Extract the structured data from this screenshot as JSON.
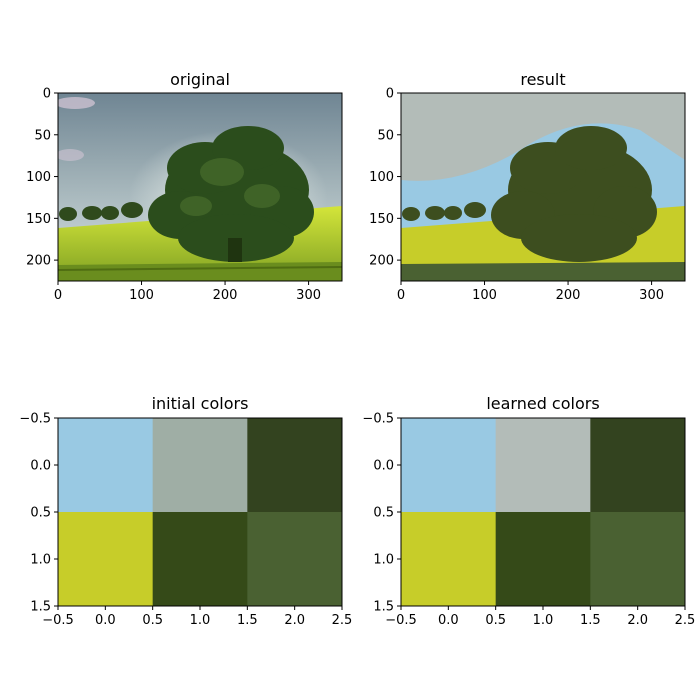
{
  "chart_data": [
    {
      "type": "image",
      "title": "original",
      "xticks": [
        "0",
        "100",
        "200",
        "300"
      ],
      "yticks": [
        "0",
        "50",
        "100",
        "150",
        "200"
      ],
      "xlim": [
        0,
        340
      ],
      "ylim": [
        225,
        0
      ],
      "colors": {
        "sky": "#7f95a3",
        "sky_light": "#c8d6d8",
        "grass": "#bcd532",
        "grass_dark": "#5a7a1a",
        "tree": "#33531f",
        "tree_dark": "#1f3a12"
      }
    },
    {
      "type": "image",
      "title": "result",
      "xticks": [
        "0",
        "100",
        "200",
        "300"
      ],
      "yticks": [
        "0",
        "50",
        "100",
        "150",
        "200"
      ],
      "xlim": [
        0,
        340
      ],
      "ylim": [
        225,
        0
      ],
      "colors": {
        "sky_gray": "#b3bcb8",
        "sky_blue": "#99c9e3",
        "grass": "#c7cd29",
        "tree": "#3d4e1f",
        "grass_dark": "#4a6132"
      }
    },
    {
      "type": "heatmap",
      "title": "initial colors",
      "xticks": [
        "−0.5",
        "0.0",
        "0.5",
        "1.0",
        "1.5",
        "2.0",
        "2.5"
      ],
      "yticks": [
        "−0.5",
        "0.0",
        "0.5",
        "1.0",
        "1.5"
      ],
      "xlim": [
        -0.5,
        2.5
      ],
      "ylim": [
        1.5,
        -0.5
      ],
      "cells": [
        [
          "#99c9e3",
          "#9faea5",
          "#33431f"
        ],
        [
          "#c7cd29",
          "#354a18",
          "#4a6132"
        ]
      ]
    },
    {
      "type": "heatmap",
      "title": "learned colors",
      "xticks": [
        "−0.5",
        "0.0",
        "0.5",
        "1.0",
        "1.5",
        "2.0",
        "2.5"
      ],
      "yticks": [
        "−0.5",
        "0.0",
        "0.5",
        "1.0",
        "1.5"
      ],
      "xlim": [
        -0.5,
        2.5
      ],
      "ylim": [
        1.5,
        -0.5
      ],
      "cells": [
        [
          "#99c9e3",
          "#b3bcb8",
          "#33431f"
        ],
        [
          "#c7cd29",
          "#354a18",
          "#4a6132"
        ]
      ]
    }
  ]
}
